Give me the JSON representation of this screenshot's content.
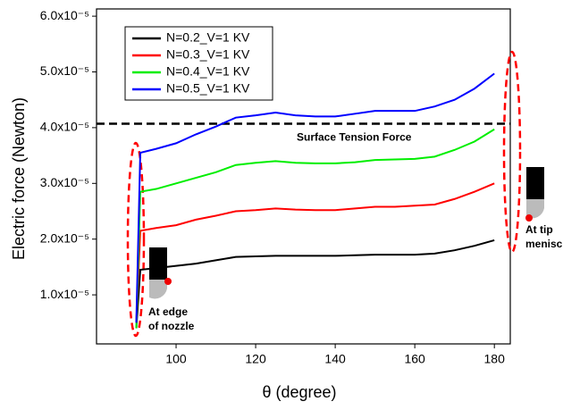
{
  "chart_data": {
    "type": "line",
    "xlabel": "θ (degree)",
    "ylabel": "Electric force (Newton)",
    "x": [
      90,
      91,
      95,
      100,
      105,
      110,
      115,
      120,
      125,
      130,
      135,
      140,
      145,
      150,
      155,
      160,
      165,
      170,
      175,
      180
    ],
    "series": [
      {
        "name": "N=0.2_V=1 KV",
        "color": "#000000",
        "values": [
          4e-06,
          1.45e-05,
          1.48e-05,
          1.52e-05,
          1.56e-05,
          1.62e-05,
          1.68e-05,
          1.69e-05,
          1.7e-05,
          1.7e-05,
          1.7e-05,
          1.7e-05,
          1.71e-05,
          1.72e-05,
          1.72e-05,
          1.72e-05,
          1.74e-05,
          1.8e-05,
          1.88e-05,
          1.98e-05
        ]
      },
      {
        "name": "N=0.3_V=1 KV",
        "color": "#ff0000",
        "values": [
          5e-06,
          2.15e-05,
          2.2e-05,
          2.25e-05,
          2.35e-05,
          2.42e-05,
          2.5e-05,
          2.52e-05,
          2.55e-05,
          2.53e-05,
          2.52e-05,
          2.52e-05,
          2.55e-05,
          2.58e-05,
          2.58e-05,
          2.6e-05,
          2.62e-05,
          2.72e-05,
          2.85e-05,
          3e-05
        ]
      },
      {
        "name": "N=0.4_V=1 KV",
        "color": "#00ee00",
        "values": [
          4e-06,
          2.85e-05,
          2.9e-05,
          3e-05,
          3.1e-05,
          3.2e-05,
          3.33e-05,
          3.37e-05,
          3.4e-05,
          3.37e-05,
          3.36e-05,
          3.36e-05,
          3.38e-05,
          3.42e-05,
          3.43e-05,
          3.44e-05,
          3.48e-05,
          3.6e-05,
          3.75e-05,
          3.97e-05
        ]
      },
      {
        "name": "N=0.5_V=1 KV",
        "color": "#0000ff",
        "values": [
          5e-06,
          3.55e-05,
          3.62e-05,
          3.72e-05,
          3.88e-05,
          4.02e-05,
          4.18e-05,
          4.22e-05,
          4.27e-05,
          4.22e-05,
          4.2e-05,
          4.2e-05,
          4.25e-05,
          4.3e-05,
          4.3e-05,
          4.3e-05,
          4.38e-05,
          4.5e-05,
          4.7e-05,
          4.97e-05
        ]
      }
    ],
    "reference_line": {
      "value": 4.07e-05,
      "label": "Surface Tension Force"
    },
    "annotations": [
      "At edge",
      "of nozzle",
      "At tip",
      "menisc"
    ],
    "xlim": [
      80,
      184
    ],
    "xticks": [
      100,
      120,
      140,
      160,
      180
    ],
    "ylim": [
      1.2e-06,
      6.13e-05
    ],
    "yticks": [
      {
        "value": 1e-05,
        "label": "1.0x10⁻⁵"
      },
      {
        "value": 2e-05,
        "label": "2.0x10⁻⁵"
      },
      {
        "value": 3e-05,
        "label": "3.0x10⁻⁵"
      },
      {
        "value": 4e-05,
        "label": "4.0x10⁻⁵"
      },
      {
        "value": 5e-05,
        "label": "5.0x10⁻⁵"
      },
      {
        "value": 6e-05,
        "label": "6.0x10⁻⁵"
      }
    ],
    "legend": "upper left"
  }
}
